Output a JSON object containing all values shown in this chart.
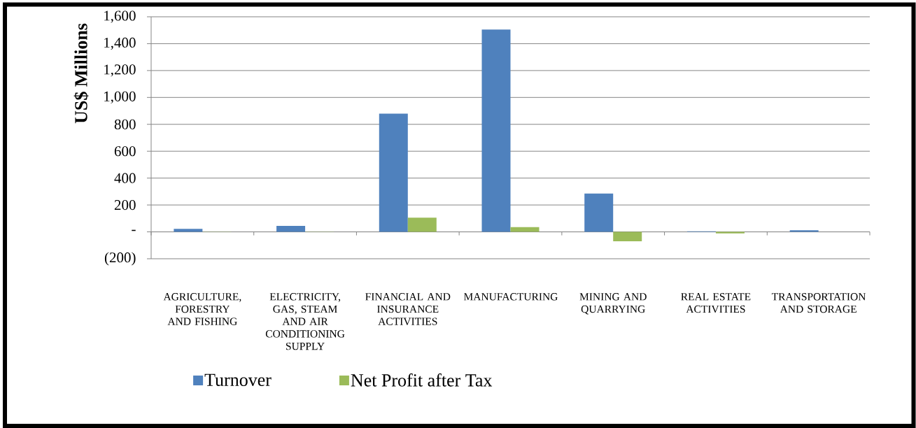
{
  "chart_data": {
    "type": "bar",
    "ylabel": "US$ Millions",
    "categories": [
      "AGRICULTURE, FORESTRY AND FISHING",
      "ELECTRICITY, GAS, STEAM AND AIR CONDITIONING SUPPLY",
      "FINANCIAL AND INSURANCE ACTIVITIES",
      "MANUFACTURING",
      "MINING AND QUARRYING",
      "REAL ESTATE ACTIVITIES",
      "TRANSPORTATION AND STORAGE"
    ],
    "series": [
      {
        "name": "Turnover",
        "color": "#4f81bd",
        "values": [
          22,
          44,
          880,
          1505,
          285,
          4,
          12
        ]
      },
      {
        "name": "Net Profit after Tax",
        "color": "#9bbb59",
        "values": [
          1,
          2,
          105,
          35,
          -70,
          -12,
          0
        ]
      }
    ],
    "ylim": [
      -200,
      1600
    ],
    "yticks": [
      {
        "value": -200,
        "label": "(200)"
      },
      {
        "value": 0,
        "label": "-"
      },
      200,
      400,
      600,
      800,
      {
        "value": 1000,
        "label": "1,000"
      },
      {
        "value": 1200,
        "label": "1,200"
      },
      {
        "value": 1400,
        "label": "1,400"
      },
      {
        "value": 1600,
        "label": "1,600"
      }
    ],
    "grid": "y",
    "legend": "bottom"
  }
}
